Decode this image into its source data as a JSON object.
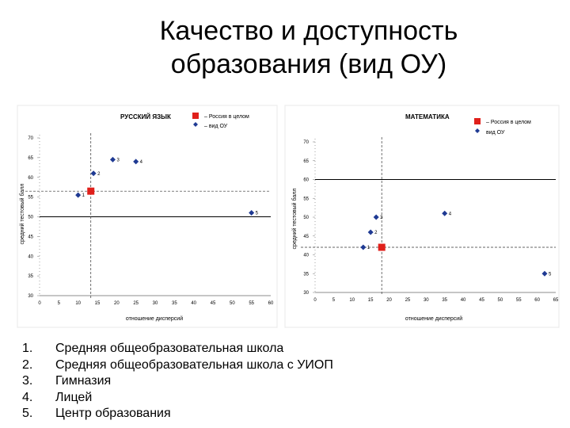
{
  "page": {
    "title_line1": "Качество и доступность",
    "title_line2": "образования (вид ОУ)"
  },
  "legend_items": [
    {
      "num": "1.",
      "text": "Средняя общеобразовательная школа"
    },
    {
      "num": "2.",
      "text": "Средняя общеобразовательная школа с УИОП"
    },
    {
      "num": "3.",
      "text": "Гимназия"
    },
    {
      "num": "4.",
      "text": "Лицей"
    },
    {
      "num": "5.",
      "text": "Центр образования"
    }
  ],
  "colors": {
    "russia_marker": "#e0201b",
    "ou_marker": "#1f3a93",
    "lines": "#000000"
  },
  "chart_data": [
    {
      "type": "scatter",
      "title": "РУССКИЙ ЯЗЫК",
      "xlabel": "отношение дисперсий",
      "ylabel": "средний тестовый балл",
      "legend": {
        "russia": "– Россия в целом",
        "ou": "– вид ОУ"
      },
      "xlim": [
        0,
        60
      ],
      "ylim": [
        30,
        70
      ],
      "xticks": [
        "0",
        "5",
        "10",
        "15",
        "20",
        "25",
        "30",
        "35",
        "40",
        "45",
        "50",
        "55",
        "60"
      ],
      "yticks": [
        "70",
        "65",
        "60",
        "55",
        "50",
        "45",
        "40",
        "35",
        "30"
      ],
      "russia_point": {
        "x": 13.3,
        "y": 56.5
      },
      "reference_lines": {
        "x": 13.3,
        "y": 56.5
      },
      "horizontal_rule_y": 50,
      "points": [
        {
          "label": "1",
          "x": 10,
          "y": 55.5
        },
        {
          "label": "2",
          "x": 14,
          "y": 61
        },
        {
          "label": "3",
          "x": 19,
          "y": 64.5
        },
        {
          "label": "4",
          "x": 25,
          "y": 64
        },
        {
          "label": "5",
          "x": 55,
          "y": 51
        }
      ]
    },
    {
      "type": "scatter",
      "title": "МАТЕМАТИКА",
      "xlabel": "отношение дисперсий",
      "ylabel": "средний тестовый балл",
      "legend": {
        "russia": "– Россия в целом",
        "ou": "вид ОУ"
      },
      "xlim": [
        0,
        65
      ],
      "ylim": [
        30,
        70
      ],
      "xticks": [
        "0",
        "5",
        "10",
        "15",
        "20",
        "25",
        "30",
        "35",
        "40",
        "45",
        "50",
        "55",
        "60",
        "65"
      ],
      "yticks": [
        "70",
        "65",
        "60",
        "55",
        "50",
        "45",
        "40",
        "35",
        "30"
      ],
      "russia_point": {
        "x": 18,
        "y": 42
      },
      "reference_lines": {
        "x": 18,
        "y": 42
      },
      "horizontal_rule_y": 60,
      "points": [
        {
          "label": "1",
          "x": 13,
          "y": 42
        },
        {
          "label": "2",
          "x": 15,
          "y": 46
        },
        {
          "label": "3",
          "x": 16.5,
          "y": 50
        },
        {
          "label": "4",
          "x": 35,
          "y": 51
        },
        {
          "label": "5",
          "x": 62,
          "y": 35
        }
      ]
    }
  ]
}
